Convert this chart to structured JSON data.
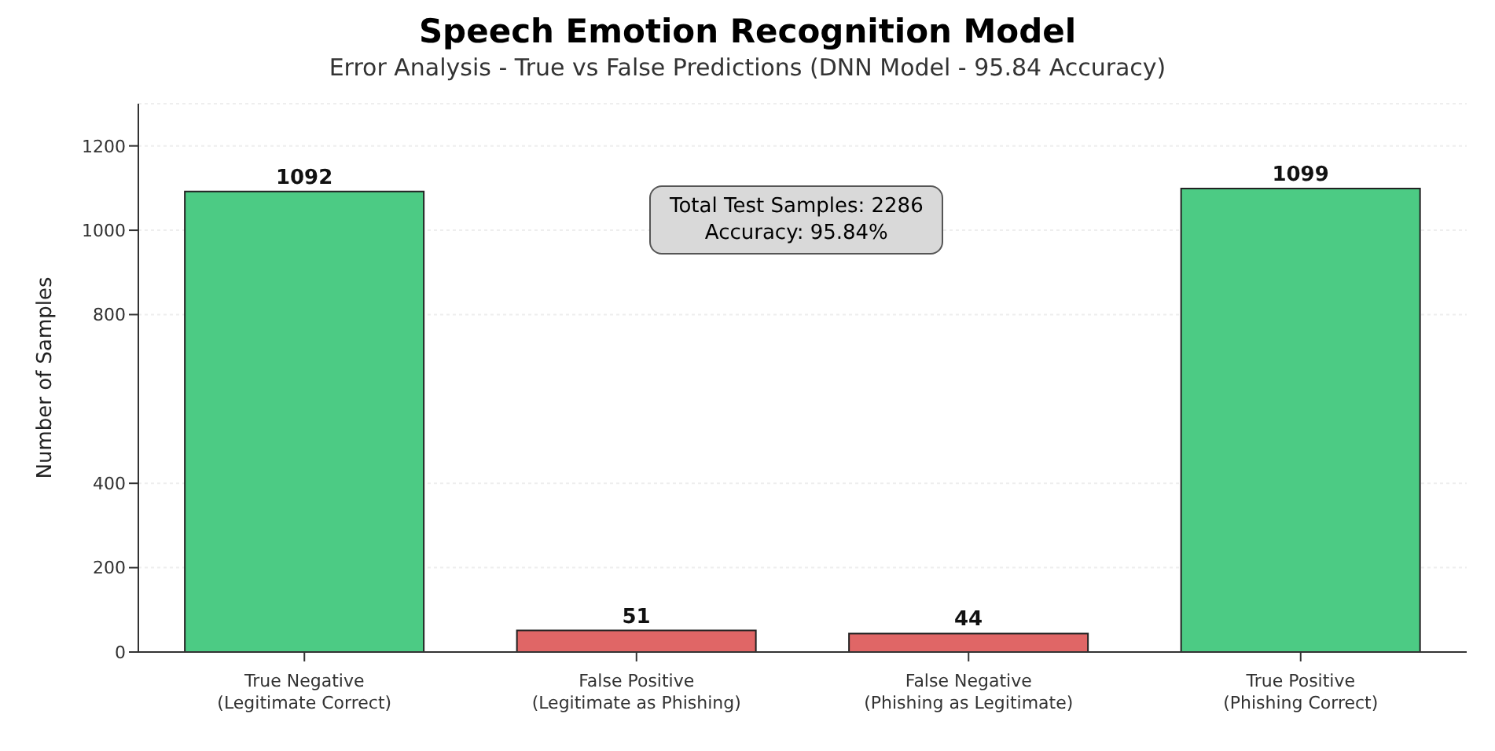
{
  "chart_data": {
    "type": "bar",
    "title": "Speech Emotion Recognition Model",
    "subtitle": "Error Analysis - True vs False Predictions (DNN Model - 95.84 Accuracy)",
    "ylabel": "Number of Samples",
    "categories": [
      "True Negative\n(Legitimate Correct)",
      "False Positive\n(Legitimate as Phishing)",
      "False Negative\n(Phishing as Legitimate)",
      "True Positive\n(Phishing Correct)"
    ],
    "values": [
      1092,
      51,
      44,
      1099
    ],
    "colors": [
      "#4ccb84",
      "#e06666",
      "#e06666",
      "#4ccb84"
    ],
    "ylim": [
      0,
      1300
    ],
    "yticks": [
      0,
      200,
      400,
      800,
      1000,
      1200
    ],
    "grid": "y",
    "data_labels": true,
    "annotations": [
      "Total Test Samples: 2286\nAccuracy: 95.84%"
    ]
  }
}
